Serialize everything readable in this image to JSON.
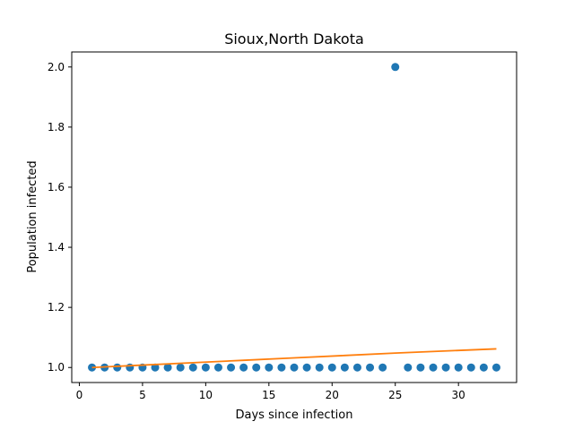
{
  "chart_data": {
    "type": "scatter",
    "title": "Sioux,North Dakota",
    "xlabel": "Days since infection",
    "ylabel": "Population infected",
    "xlim": [
      -0.6,
      34.6
    ],
    "ylim": [
      0.95,
      2.05
    ],
    "xticks": [
      0,
      5,
      10,
      15,
      20,
      25,
      30
    ],
    "xtick_labels": [
      "0",
      "5",
      "10",
      "15",
      "20",
      "25",
      "30"
    ],
    "yticks": [
      1.0,
      1.2,
      1.4,
      1.6,
      1.8,
      2.0
    ],
    "ytick_labels": [
      "1.0",
      "1.2",
      "1.4",
      "1.6",
      "1.8",
      "2.0"
    ],
    "grid": false,
    "series": [
      {
        "kind": "scatter",
        "color": "#1f77b4",
        "x": [
          1,
          2,
          3,
          4,
          5,
          6,
          7,
          8,
          9,
          10,
          11,
          12,
          13,
          14,
          15,
          16,
          17,
          18,
          19,
          20,
          21,
          22,
          23,
          24,
          25,
          26,
          27,
          28,
          29,
          30,
          31,
          32,
          33
        ],
        "y": [
          1,
          1,
          1,
          1,
          1,
          1,
          1,
          1,
          1,
          1,
          1,
          1,
          1,
          1,
          1,
          1,
          1,
          1,
          1,
          1,
          1,
          1,
          1,
          1,
          2,
          1,
          1,
          1,
          1,
          1,
          1,
          1,
          1
        ]
      },
      {
        "kind": "line",
        "color": "#ff7f0e",
        "x": [
          1,
          5,
          9,
          13,
          17,
          21,
          25,
          29,
          33
        ],
        "y": [
          1.0,
          1.008,
          1.016,
          1.024,
          1.032,
          1.04,
          1.048,
          1.055,
          1.062
        ]
      }
    ]
  }
}
